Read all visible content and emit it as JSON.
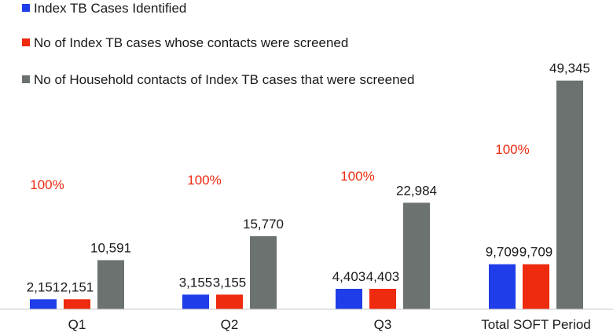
{
  "chart_data": {
    "type": "bar",
    "categories": [
      "Q1",
      "Q2",
      "Q3",
      "Total SOFT Period"
    ],
    "series": [
      {
        "name": "Index TB Cases Identified",
        "color": "#1f3de8",
        "values": [
          2151,
          3155,
          4403,
          9709
        ],
        "labels": [
          "2,151",
          "3,155",
          "4,403",
          "9,709"
        ]
      },
      {
        "name": "No of Index TB cases whose contacts were screened",
        "color": "#ee2a0f",
        "values": [
          2151,
          3155,
          4403,
          9709
        ],
        "labels": [
          "2,151",
          "3,155",
          "4,403",
          "9,709"
        ]
      },
      {
        "name": "No of Household contacts of Index TB cases that were screened",
        "color": "#6b7270",
        "values": [
          10591,
          15770,
          22984,
          49345
        ],
        "labels": [
          "10,591",
          "15,770",
          "22,984",
          "49,345"
        ]
      }
    ],
    "annotations": [
      "100%",
      "100%",
      "100%",
      "100%"
    ],
    "annotation_color": "#ee2a0f",
    "ylim": [
      0,
      52000
    ],
    "grid": false,
    "legend_position": "top-left"
  }
}
